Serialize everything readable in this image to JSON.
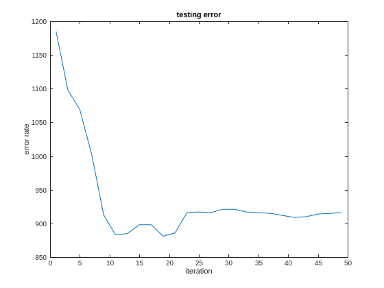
{
  "chart_data": {
    "type": "line",
    "title": "testing error",
    "xlabel": "iteration",
    "ylabel": "error rate",
    "xlim": [
      0,
      50
    ],
    "ylim": [
      850,
      1200
    ],
    "xticks": [
      0,
      5,
      10,
      15,
      20,
      25,
      30,
      35,
      40,
      45,
      50
    ],
    "yticks": [
      850,
      900,
      950,
      1000,
      1050,
      1100,
      1150,
      1200
    ],
    "grid": false,
    "box": true,
    "series": [
      {
        "color": "#0072BD",
        "x": [
          1,
          3,
          5,
          7,
          9,
          11,
          13,
          15,
          17,
          19,
          21,
          23,
          25,
          27,
          29,
          31,
          33,
          35,
          37,
          39,
          41,
          43,
          45,
          47,
          49
        ],
        "y": [
          1185,
          1098,
          1069,
          1002,
          913,
          883,
          885,
          898,
          898,
          881,
          886,
          916,
          917,
          916,
          921,
          921,
          917,
          916,
          915,
          912,
          909,
          910,
          914,
          915,
          916
        ]
      }
    ]
  }
}
